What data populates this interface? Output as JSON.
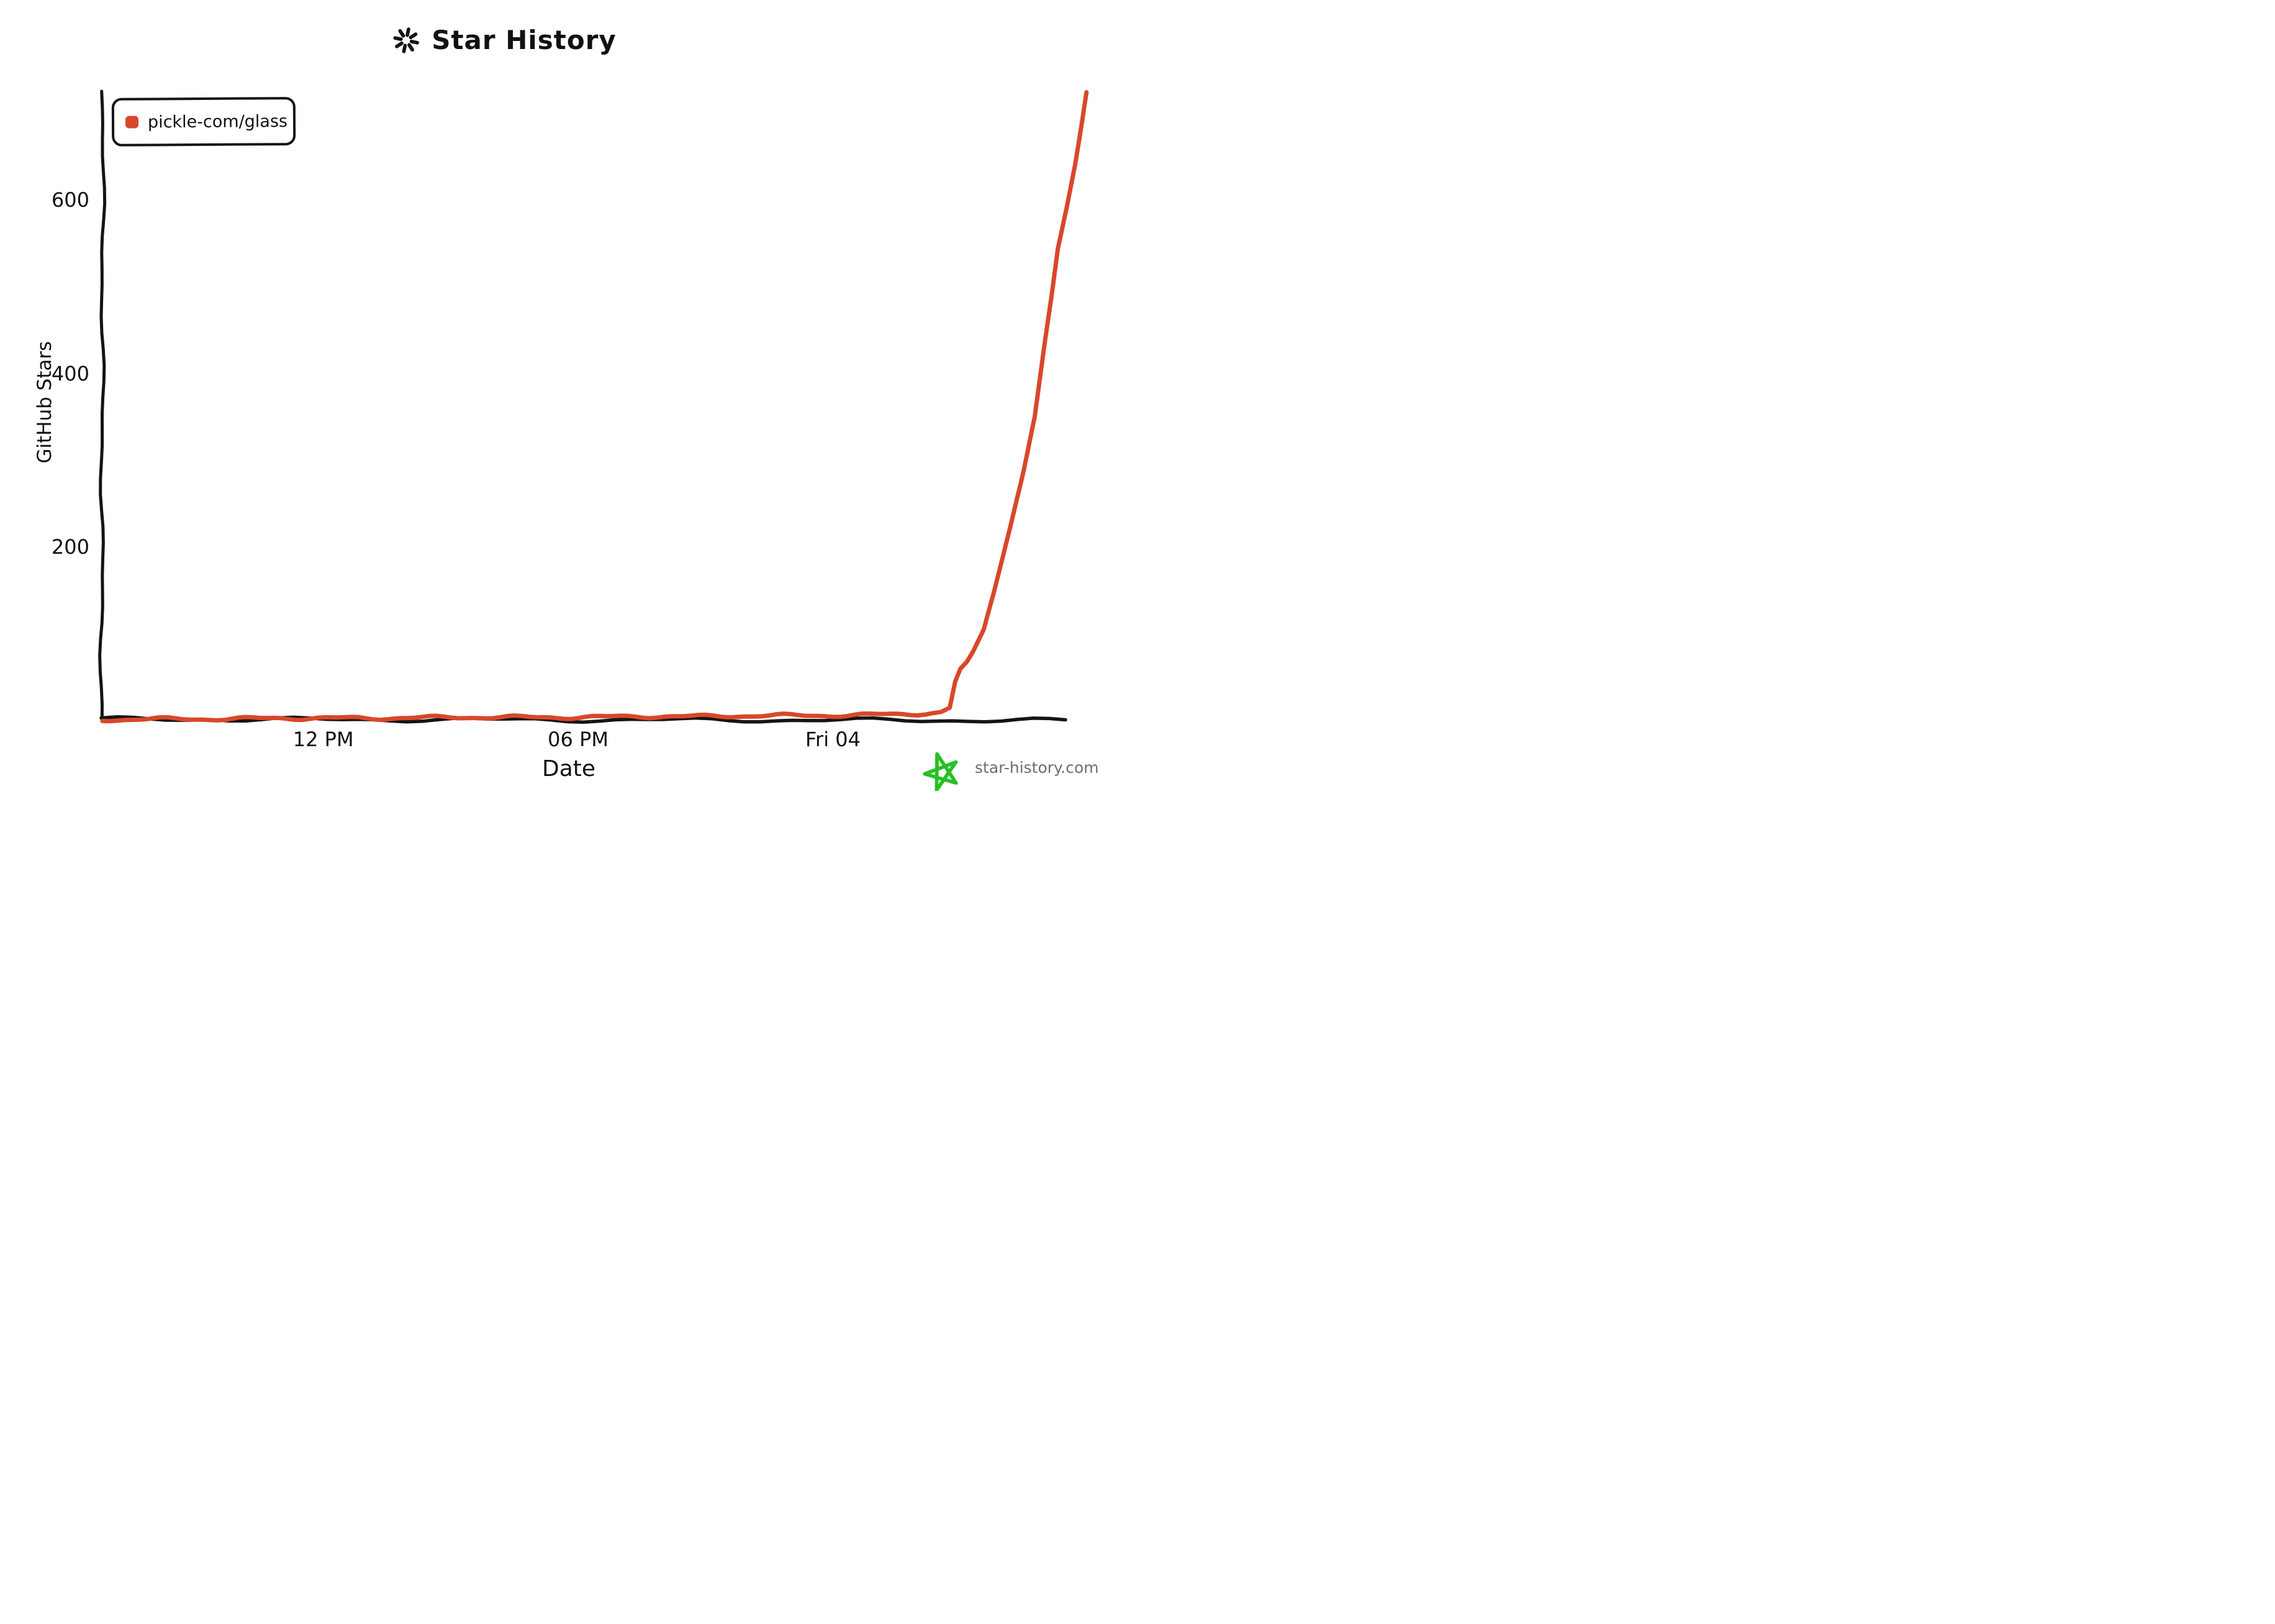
{
  "chart_data": {
    "type": "line",
    "title": "Star History",
    "xlabel": "Date",
    "ylabel": "GitHub Stars",
    "grid": false,
    "legend_position": "top-left",
    "x_ticks": [
      {
        "label": "12 PM",
        "t": -12
      },
      {
        "label": "06 PM",
        "t": -6
      },
      {
        "label": "Fri 04",
        "t": 0
      }
    ],
    "x_axis_note": "t = hours relative to the 'Fri 04' midnight tick",
    "x_range_t": [
      -17.2,
      5.97
    ],
    "y_ticks": [
      {
        "value": 600
      },
      {
        "value": 400
      },
      {
        "value": 200
      }
    ],
    "y_range": [
      0,
      726
    ],
    "series": [
      {
        "name": "pickle-com/glass",
        "color": "#d9472b",
        "points": [
          [
            -17.2,
            1
          ],
          [
            -16,
            2
          ],
          [
            -14.5,
            2
          ],
          [
            -13,
            3
          ],
          [
            -12,
            3
          ],
          [
            -10.5,
            3
          ],
          [
            -9,
            4
          ],
          [
            -7.5,
            4
          ],
          [
            -6,
            4
          ],
          [
            -4.5,
            5
          ],
          [
            -3,
            5
          ],
          [
            -1.5,
            6
          ],
          [
            0,
            6
          ],
          [
            1,
            7
          ],
          [
            2,
            8
          ],
          [
            2.55,
            10
          ],
          [
            2.75,
            15
          ],
          [
            2.88,
            45
          ],
          [
            3.0,
            60
          ],
          [
            3.15,
            68
          ],
          [
            3.3,
            80
          ],
          [
            3.55,
            105
          ],
          [
            3.8,
            150
          ],
          [
            4.17,
            222
          ],
          [
            4.5,
            290
          ],
          [
            4.75,
            350
          ],
          [
            5.0,
            440
          ],
          [
            5.15,
            490
          ],
          [
            5.3,
            545
          ],
          [
            5.5,
            590
          ],
          [
            5.7,
            640
          ],
          [
            5.85,
            685
          ],
          [
            5.97,
            724
          ]
        ]
      }
    ]
  },
  "legend": {
    "items": [
      {
        "label": "pickle-com/glass",
        "color": "#d9472b"
      }
    ]
  },
  "footer": {
    "site": "star-history.com"
  },
  "colors": {
    "axis": "#141414",
    "text": "#111111",
    "accent_red": "#d9472b",
    "star_green": "#25c125",
    "footer_text": "#6e6e6e",
    "background": "#ffffff"
  }
}
